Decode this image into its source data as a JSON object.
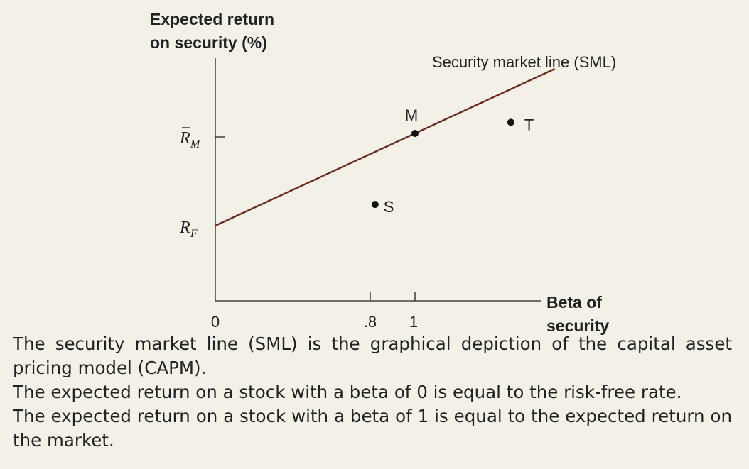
{
  "chart_data": {
    "type": "line",
    "y_axis_title_line1": "Expected return",
    "y_axis_title_line2": "on security (%)",
    "x_axis_title_line1": "Beta of",
    "x_axis_title_line2": "security",
    "x_tick_labels": [
      "0",
      ".8",
      "1"
    ],
    "x_ticks": [
      0,
      0.8,
      1
    ],
    "y_tick_labels": [
      {
        "main": "R",
        "bar": true,
        "sub": "M"
      },
      {
        "main": "R",
        "bar": false,
        "sub": "F"
      }
    ],
    "xlim": [
      0,
      1.75
    ],
    "sml": {
      "name": "Security market line (SML)",
      "color": "#6b2a1c",
      "intercept_label": "R_F",
      "x": [
        0,
        1.7
      ],
      "relative_y": [
        0,
        1.7
      ]
    },
    "points": [
      {
        "label": "M",
        "beta": 1.0,
        "relative_return": 1.0
      },
      {
        "label": "S",
        "beta": 0.8,
        "relative_return": 0.23
      },
      {
        "label": "T",
        "beta": 1.48,
        "relative_return": 1.12
      }
    ]
  },
  "caption": {
    "para1": "The security market line (SML) is the graphical depiction of the capital asset pricing model (CAPM).",
    "para2": "The expected return on a stock with a beta of 0 is equal to the risk-free rate.",
    "para3": "The expected return on a stock with a beta of 1 is equal to the expected return on the market."
  },
  "colors": {
    "background": "#f3f0e7",
    "sml_line": "#6b2a1c",
    "axis": "#222222"
  }
}
